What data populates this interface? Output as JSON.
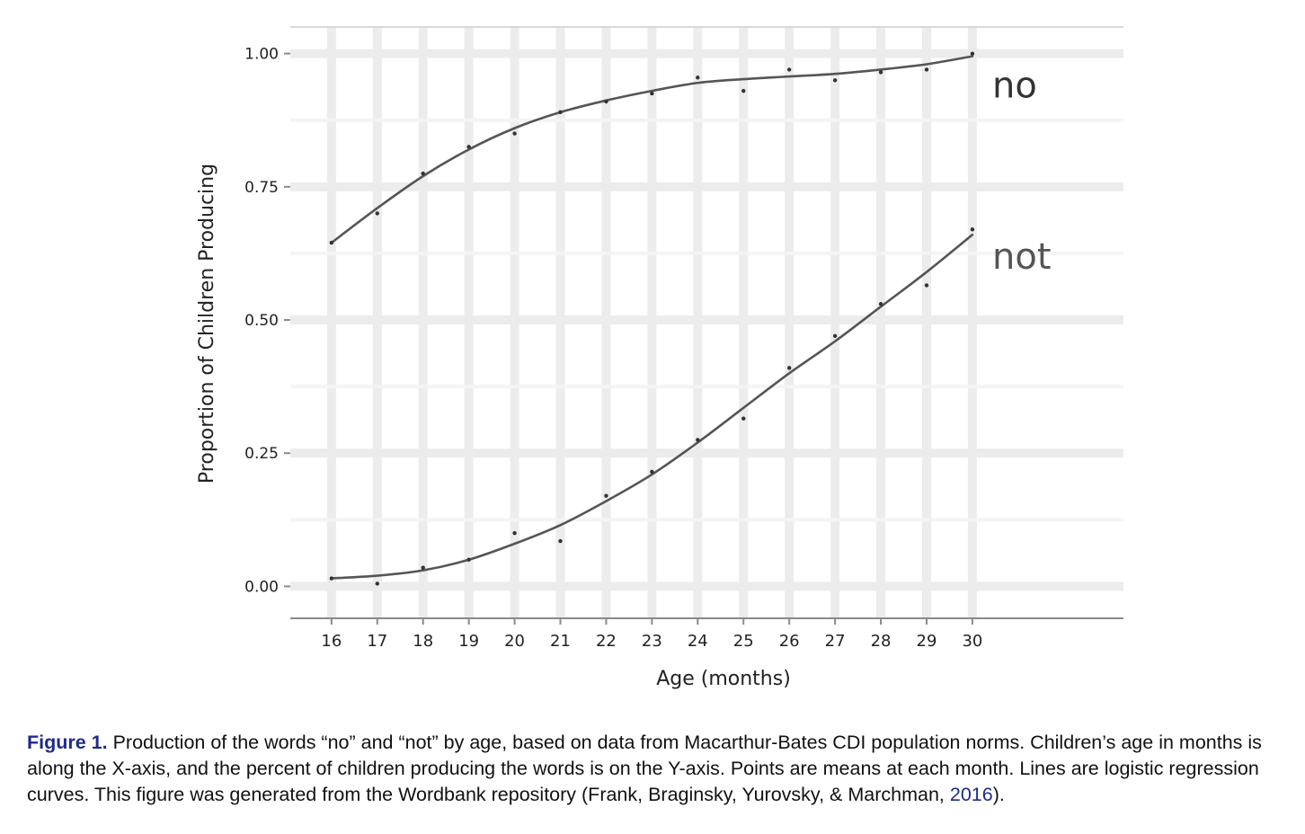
{
  "chart_data": {
    "type": "line",
    "xlabel": "Age (months)",
    "ylabel": "Proportion of Children Producing",
    "xlim": [
      15.1,
      33.3
    ],
    "ylim": [
      -0.06,
      1.05
    ],
    "x_ticks": [
      16,
      17,
      18,
      19,
      20,
      21,
      22,
      23,
      24,
      25,
      26,
      27,
      28,
      29,
      30
    ],
    "x_tick_labels": [
      "16",
      "17",
      "18",
      "19",
      "20",
      "21",
      "22",
      "23",
      "24",
      "25",
      "26",
      "27",
      "28",
      "29",
      "30"
    ],
    "y_ticks": [
      0,
      0.25,
      0.5,
      0.75,
      1.0
    ],
    "y_tick_labels": [
      "0.00",
      "0.25",
      "0.50",
      "0.75",
      "1.00"
    ],
    "grid": true,
    "series": [
      {
        "name": "no",
        "color": "#555555",
        "points_x": [
          16,
          17,
          18,
          19,
          20,
          21,
          22,
          23,
          24,
          25,
          26,
          27,
          28,
          29,
          30
        ],
        "points_y": [
          0.645,
          0.7,
          0.775,
          0.825,
          0.85,
          0.89,
          0.91,
          0.925,
          0.955,
          0.93,
          0.97,
          0.95,
          0.965,
          0.97,
          1.0
        ],
        "curve_x": [
          16,
          17,
          18,
          19,
          20,
          21,
          22,
          23,
          24,
          25,
          26,
          27,
          28,
          29,
          30
        ],
        "curve_y": [
          0.645,
          0.71,
          0.77,
          0.82,
          0.86,
          0.89,
          0.912,
          0.93,
          0.945,
          0.952,
          0.957,
          0.962,
          0.97,
          0.98,
          0.995
        ]
      },
      {
        "name": "not",
        "color": "#555555",
        "points_x": [
          16,
          17,
          18,
          19,
          20,
          21,
          22,
          23,
          24,
          25,
          26,
          27,
          28,
          29,
          30
        ],
        "points_y": [
          0.015,
          0.005,
          0.035,
          0.05,
          0.1,
          0.085,
          0.17,
          0.215,
          0.275,
          0.315,
          0.41,
          0.47,
          0.53,
          0.565,
          0.67
        ],
        "curve_x": [
          16,
          17,
          18,
          19,
          20,
          21,
          22,
          23,
          24,
          25,
          26,
          27,
          28,
          29,
          30
        ],
        "curve_y": [
          0.015,
          0.02,
          0.03,
          0.05,
          0.08,
          0.115,
          0.16,
          0.21,
          0.27,
          0.335,
          0.4,
          0.46,
          0.525,
          0.59,
          0.66
        ]
      }
    ]
  },
  "caption": {
    "label": "Figure 1.",
    "text": " Production of the words “no” and “not” by age, based on data from Macarthur-Bates CDI population norms. Children’s age in months is along the X-axis, and the percent of children producing the words is on the Y-axis. Points are means at each month. Lines are logistic regression curves. This figure was generated from the Wordbank repository (Frank, Braginsky, Yurovsky, & Marchman, ",
    "year": "2016",
    "tail": ")."
  }
}
